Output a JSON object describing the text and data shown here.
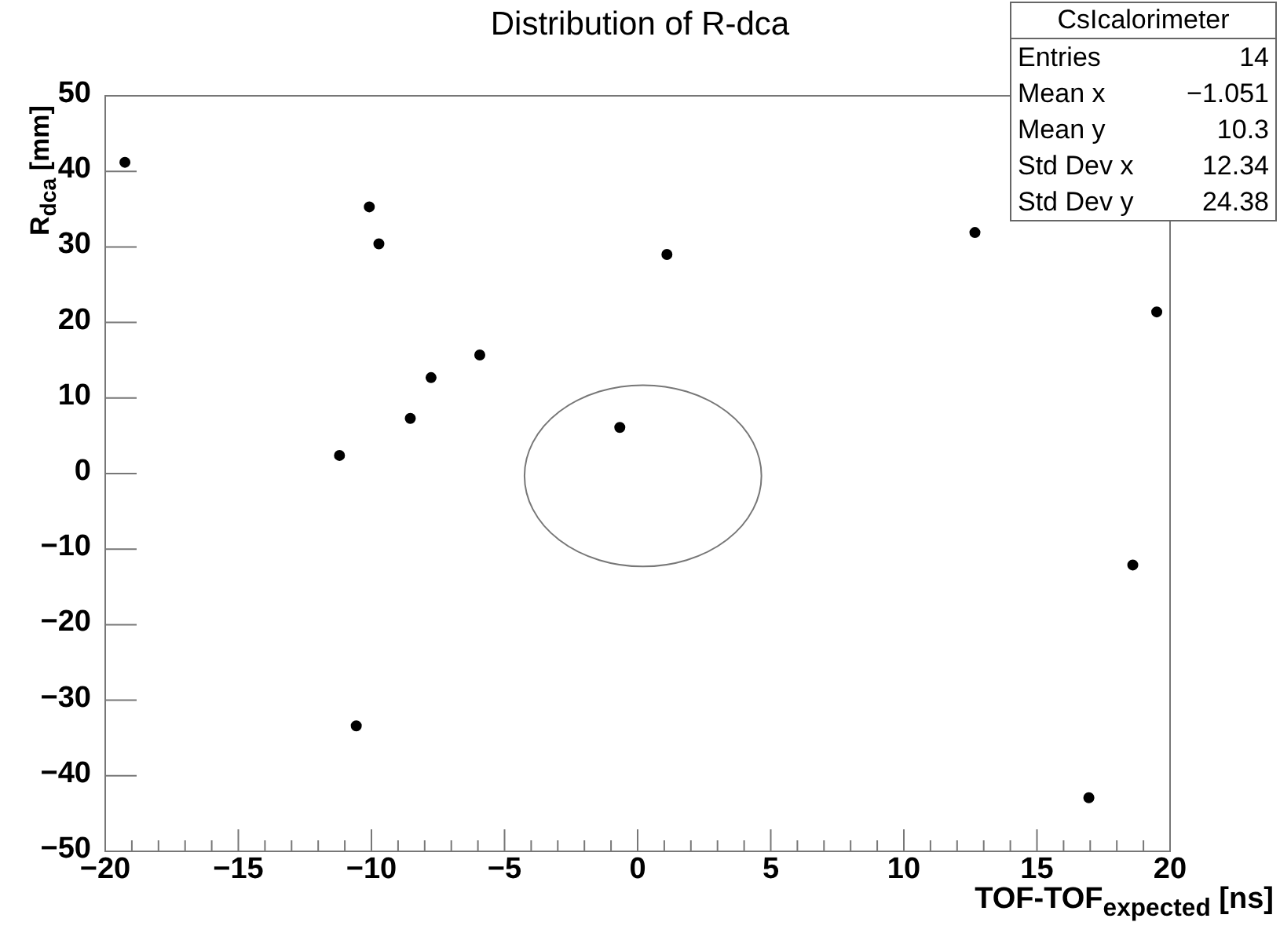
{
  "chart_data": {
    "type": "scatter",
    "title": "Distribution of R-dca",
    "xlabel": "TOF-TOF$_{expected}$ [ns]",
    "ylabel": "R$_{dca}$ [mm]",
    "x": [
      -19.26,
      -10.08,
      -9.72,
      -11.2,
      -8.54,
      -7.76,
      -5.93,
      -0.67,
      1.1,
      12.67,
      19.5,
      -10.57,
      18.6,
      16.95
    ],
    "values": [
      41.2,
      35.3,
      30.4,
      2.4,
      7.3,
      12.7,
      15.7,
      6.1,
      29.0,
      31.9,
      21.4,
      -33.4,
      -12.1,
      -42.9
    ],
    "color": "#000000",
    "marker": "circle",
    "xlim": [
      -20,
      20
    ],
    "xticks": [
      -20,
      -15,
      -10,
      -5,
      0,
      5,
      10,
      15,
      20
    ],
    "ylim": [
      -50,
      50
    ],
    "yticks": [
      -50,
      -40,
      -30,
      -20,
      -10,
      0,
      10,
      20,
      30,
      40,
      50
    ],
    "grid": false,
    "legend": false,
    "annotations": [
      "CsIcalorimeter",
      "Entries 14",
      "Mean x −1.051",
      "Mean y 10.3",
      "Std Dev x 12.34",
      "Std Dev y 24.38"
    ]
  }
}
